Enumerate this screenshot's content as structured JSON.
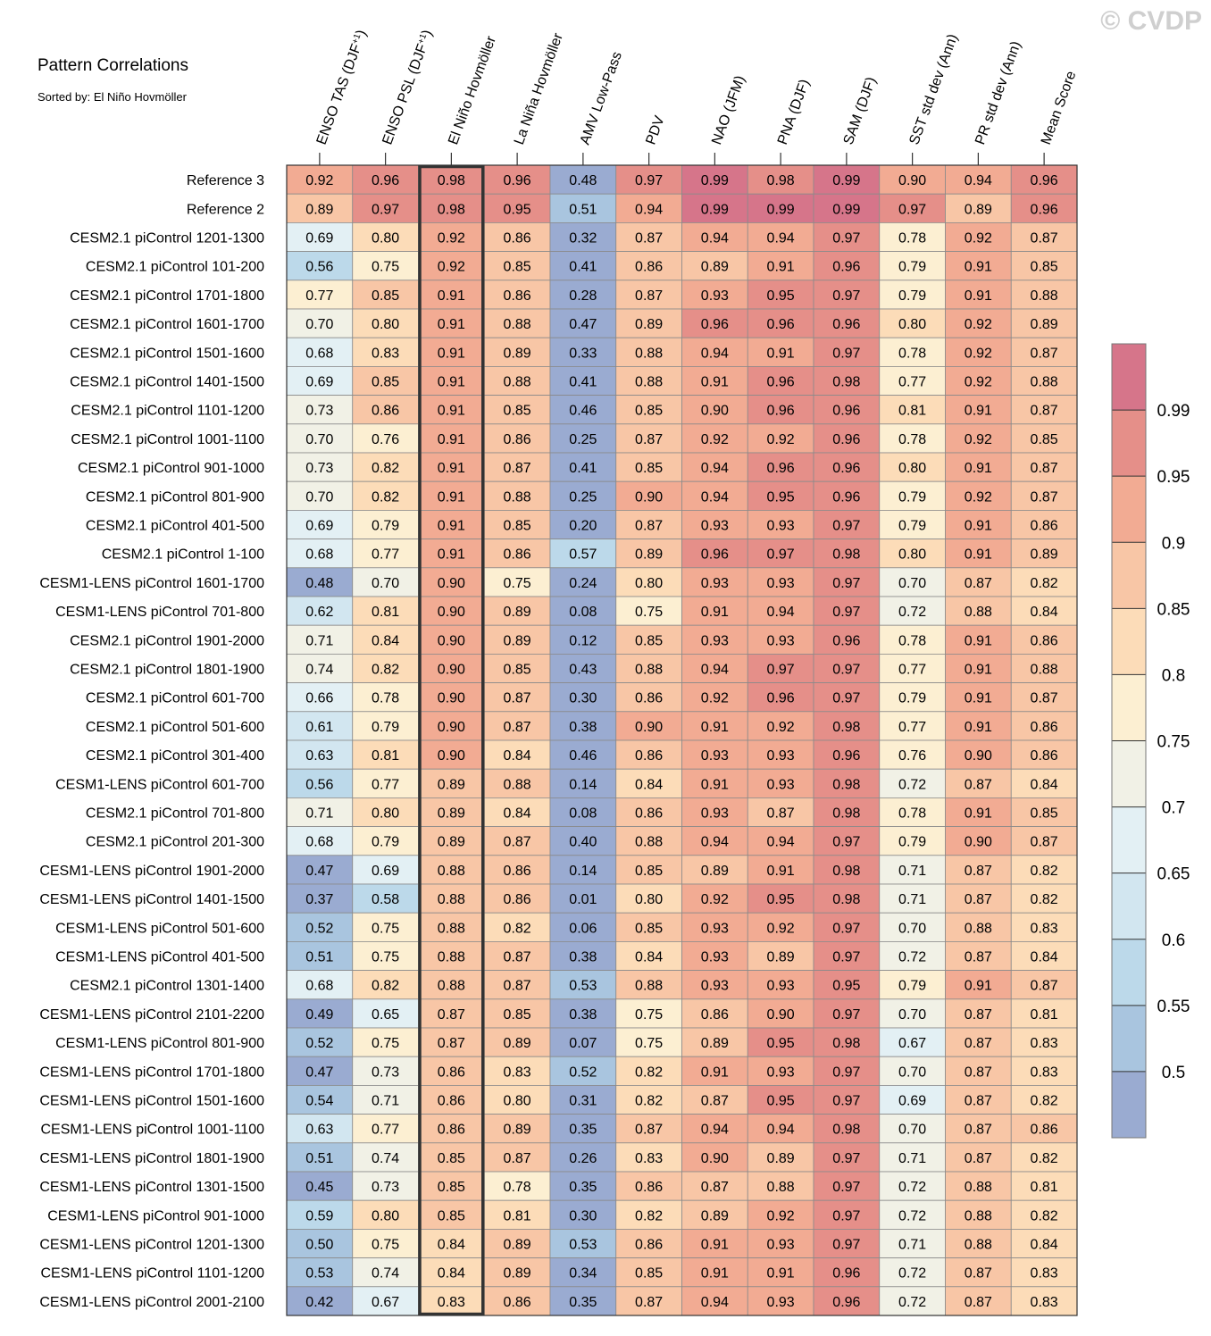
{
  "watermark": "© CVDP",
  "chart_data": {
    "type": "heatmap",
    "title": "Pattern Correlations",
    "subtitle": "Sorted by: El Niño Hovmöller",
    "highlighted_column": "El Niño Hovmöller",
    "columns": [
      {
        "label": "ENSO TAS (DJF",
        "sup": "+1",
        "suffix": ")"
      },
      {
        "label": "ENSO PSL (DJF",
        "sup": "+1",
        "suffix": ")"
      },
      {
        "label": "El Niño Hovmöller"
      },
      {
        "label": "La Niña Hovmöller"
      },
      {
        "label": "AMV Low-Pass"
      },
      {
        "label": "PDV"
      },
      {
        "label": "NAO (JFM)"
      },
      {
        "label": "PNA (DJF)"
      },
      {
        "label": "SAM (DJF)"
      },
      {
        "label": "SST std dev (Ann)"
      },
      {
        "label": "PR std dev (Ann)"
      },
      {
        "label": "Mean Score"
      }
    ],
    "rows": [
      {
        "label": "Reference 3",
        "values": [
          "0.92",
          "0.96",
          "0.98",
          "0.96",
          "0.48",
          "0.97",
          "0.99",
          "0.98",
          "0.99",
          "0.90",
          "0.94",
          "0.96"
        ]
      },
      {
        "label": "Reference 2",
        "values": [
          "0.89",
          "0.97",
          "0.98",
          "0.95",
          "0.51",
          "0.94",
          "0.99",
          "0.99",
          "0.99",
          "0.97",
          "0.89",
          "0.96"
        ]
      },
      {
        "label": "CESM2.1 piControl 1201-1300",
        "values": [
          "0.69",
          "0.80",
          "0.92",
          "0.86",
          "0.32",
          "0.87",
          "0.94",
          "0.94",
          "0.97",
          "0.78",
          "0.92",
          "0.87"
        ]
      },
      {
        "label": "CESM2.1 piControl 101-200",
        "values": [
          "0.56",
          "0.75",
          "0.92",
          "0.85",
          "0.41",
          "0.86",
          "0.89",
          "0.91",
          "0.96",
          "0.79",
          "0.91",
          "0.85"
        ]
      },
      {
        "label": "CESM2.1 piControl 1701-1800",
        "values": [
          "0.77",
          "0.85",
          "0.91",
          "0.86",
          "0.28",
          "0.87",
          "0.93",
          "0.95",
          "0.97",
          "0.79",
          "0.91",
          "0.88"
        ]
      },
      {
        "label": "CESM2.1 piControl 1601-1700",
        "values": [
          "0.70",
          "0.80",
          "0.91",
          "0.88",
          "0.47",
          "0.89",
          "0.96",
          "0.96",
          "0.96",
          "0.80",
          "0.92",
          "0.89"
        ]
      },
      {
        "label": "CESM2.1 piControl 1501-1600",
        "values": [
          "0.68",
          "0.83",
          "0.91",
          "0.89",
          "0.33",
          "0.88",
          "0.94",
          "0.91",
          "0.97",
          "0.78",
          "0.92",
          "0.87"
        ]
      },
      {
        "label": "CESM2.1 piControl 1401-1500",
        "values": [
          "0.69",
          "0.85",
          "0.91",
          "0.88",
          "0.41",
          "0.88",
          "0.91",
          "0.96",
          "0.98",
          "0.77",
          "0.92",
          "0.88"
        ]
      },
      {
        "label": "CESM2.1 piControl 1101-1200",
        "values": [
          "0.73",
          "0.86",
          "0.91",
          "0.85",
          "0.46",
          "0.85",
          "0.90",
          "0.96",
          "0.96",
          "0.81",
          "0.91",
          "0.87"
        ]
      },
      {
        "label": "CESM2.1 piControl 1001-1100",
        "values": [
          "0.70",
          "0.76",
          "0.91",
          "0.86",
          "0.25",
          "0.87",
          "0.92",
          "0.92",
          "0.96",
          "0.78",
          "0.92",
          "0.85"
        ]
      },
      {
        "label": "CESM2.1 piControl 901-1000",
        "values": [
          "0.73",
          "0.82",
          "0.91",
          "0.87",
          "0.41",
          "0.85",
          "0.94",
          "0.96",
          "0.96",
          "0.80",
          "0.91",
          "0.87"
        ]
      },
      {
        "label": "CESM2.1 piControl 801-900",
        "values": [
          "0.70",
          "0.82",
          "0.91",
          "0.88",
          "0.25",
          "0.90",
          "0.94",
          "0.95",
          "0.96",
          "0.79",
          "0.92",
          "0.87"
        ]
      },
      {
        "label": "CESM2.1 piControl 401-500",
        "values": [
          "0.69",
          "0.79",
          "0.91",
          "0.85",
          "0.20",
          "0.87",
          "0.93",
          "0.93",
          "0.97",
          "0.79",
          "0.91",
          "0.86"
        ]
      },
      {
        "label": "CESM2.1 piControl 1-100",
        "values": [
          "0.68",
          "0.77",
          "0.91",
          "0.86",
          "0.57",
          "0.89",
          "0.96",
          "0.97",
          "0.98",
          "0.80",
          "0.91",
          "0.89"
        ]
      },
      {
        "label": "CESM1-LENS piControl 1601-1700",
        "values": [
          "0.48",
          "0.70",
          "0.90",
          "0.75",
          "0.24",
          "0.80",
          "0.93",
          "0.93",
          "0.97",
          "0.70",
          "0.87",
          "0.82"
        ]
      },
      {
        "label": "CESM1-LENS piControl 701-800",
        "values": [
          "0.62",
          "0.81",
          "0.90",
          "0.89",
          "0.08",
          "0.75",
          "0.91",
          "0.94",
          "0.97",
          "0.72",
          "0.88",
          "0.84"
        ]
      },
      {
        "label": "CESM2.1 piControl 1901-2000",
        "values": [
          "0.71",
          "0.84",
          "0.90",
          "0.89",
          "0.12",
          "0.85",
          "0.93",
          "0.93",
          "0.96",
          "0.78",
          "0.91",
          "0.86"
        ]
      },
      {
        "label": "CESM2.1 piControl 1801-1900",
        "values": [
          "0.74",
          "0.82",
          "0.90",
          "0.85",
          "0.43",
          "0.88",
          "0.94",
          "0.97",
          "0.97",
          "0.77",
          "0.91",
          "0.88"
        ]
      },
      {
        "label": "CESM2.1 piControl 601-700",
        "values": [
          "0.66",
          "0.78",
          "0.90",
          "0.87",
          "0.30",
          "0.86",
          "0.92",
          "0.96",
          "0.97",
          "0.79",
          "0.91",
          "0.87"
        ]
      },
      {
        "label": "CESM2.1 piControl 501-600",
        "values": [
          "0.61",
          "0.79",
          "0.90",
          "0.87",
          "0.38",
          "0.90",
          "0.91",
          "0.92",
          "0.98",
          "0.77",
          "0.91",
          "0.86"
        ]
      },
      {
        "label": "CESM2.1 piControl 301-400",
        "values": [
          "0.63",
          "0.81",
          "0.90",
          "0.84",
          "0.46",
          "0.86",
          "0.93",
          "0.93",
          "0.96",
          "0.76",
          "0.90",
          "0.86"
        ]
      },
      {
        "label": "CESM1-LENS piControl 601-700",
        "values": [
          "0.56",
          "0.77",
          "0.89",
          "0.88",
          "0.14",
          "0.84",
          "0.91",
          "0.93",
          "0.98",
          "0.72",
          "0.87",
          "0.84"
        ]
      },
      {
        "label": "CESM2.1 piControl 701-800",
        "values": [
          "0.71",
          "0.80",
          "0.89",
          "0.84",
          "0.08",
          "0.86",
          "0.93",
          "0.87",
          "0.98",
          "0.78",
          "0.91",
          "0.85"
        ]
      },
      {
        "label": "CESM2.1 piControl 201-300",
        "values": [
          "0.68",
          "0.79",
          "0.89",
          "0.87",
          "0.40",
          "0.88",
          "0.94",
          "0.94",
          "0.97",
          "0.79",
          "0.90",
          "0.87"
        ]
      },
      {
        "label": "CESM1-LENS piControl 1901-2000",
        "values": [
          "0.47",
          "0.69",
          "0.88",
          "0.86",
          "0.14",
          "0.85",
          "0.89",
          "0.91",
          "0.98",
          "0.71",
          "0.87",
          "0.82"
        ]
      },
      {
        "label": "CESM1-LENS piControl 1401-1500",
        "values": [
          "0.37",
          "0.58",
          "0.88",
          "0.86",
          "0.01",
          "0.80",
          "0.92",
          "0.95",
          "0.98",
          "0.71",
          "0.87",
          "0.82"
        ]
      },
      {
        "label": "CESM1-LENS piControl 501-600",
        "values": [
          "0.52",
          "0.75",
          "0.88",
          "0.82",
          "0.06",
          "0.85",
          "0.93",
          "0.92",
          "0.97",
          "0.70",
          "0.88",
          "0.83"
        ]
      },
      {
        "label": "CESM1-LENS piControl 401-500",
        "values": [
          "0.51",
          "0.75",
          "0.88",
          "0.87",
          "0.38",
          "0.84",
          "0.93",
          "0.89",
          "0.97",
          "0.72",
          "0.87",
          "0.84"
        ]
      },
      {
        "label": "CESM2.1 piControl 1301-1400",
        "values": [
          "0.68",
          "0.82",
          "0.88",
          "0.87",
          "0.53",
          "0.88",
          "0.93",
          "0.93",
          "0.95",
          "0.79",
          "0.91",
          "0.87"
        ]
      },
      {
        "label": "CESM1-LENS piControl 2101-2200",
        "values": [
          "0.49",
          "0.65",
          "0.87",
          "0.85",
          "0.38",
          "0.75",
          "0.86",
          "0.90",
          "0.97",
          "0.70",
          "0.87",
          "0.81"
        ]
      },
      {
        "label": "CESM1-LENS piControl 801-900",
        "values": [
          "0.52",
          "0.75",
          "0.87",
          "0.89",
          "0.07",
          "0.75",
          "0.89",
          "0.95",
          "0.98",
          "0.67",
          "0.87",
          "0.83"
        ]
      },
      {
        "label": "CESM1-LENS piControl 1701-1800",
        "values": [
          "0.47",
          "0.73",
          "0.86",
          "0.83",
          "0.52",
          "0.82",
          "0.91",
          "0.93",
          "0.97",
          "0.70",
          "0.87",
          "0.83"
        ]
      },
      {
        "label": "CESM1-LENS piControl 1501-1600",
        "values": [
          "0.54",
          "0.71",
          "0.86",
          "0.80",
          "0.31",
          "0.82",
          "0.87",
          "0.95",
          "0.97",
          "0.69",
          "0.87",
          "0.82"
        ]
      },
      {
        "label": "CESM1-LENS piControl 1001-1100",
        "values": [
          "0.63",
          "0.77",
          "0.86",
          "0.89",
          "0.35",
          "0.87",
          "0.94",
          "0.94",
          "0.98",
          "0.70",
          "0.87",
          "0.86"
        ]
      },
      {
        "label": "CESM1-LENS piControl 1801-1900",
        "values": [
          "0.51",
          "0.74",
          "0.85",
          "0.87",
          "0.26",
          "0.83",
          "0.90",
          "0.89",
          "0.97",
          "0.71",
          "0.87",
          "0.82"
        ]
      },
      {
        "label": "CESM1-LENS piControl 1301-1500",
        "values": [
          "0.45",
          "0.73",
          "0.85",
          "0.78",
          "0.35",
          "0.86",
          "0.87",
          "0.88",
          "0.97",
          "0.72",
          "0.88",
          "0.81"
        ]
      },
      {
        "label": "CESM1-LENS piControl 901-1000",
        "values": [
          "0.59",
          "0.80",
          "0.85",
          "0.81",
          "0.30",
          "0.82",
          "0.89",
          "0.92",
          "0.97",
          "0.72",
          "0.88",
          "0.82"
        ]
      },
      {
        "label": "CESM1-LENS piControl 1201-1300",
        "values": [
          "0.50",
          "0.75",
          "0.84",
          "0.89",
          "0.53",
          "0.86",
          "0.91",
          "0.93",
          "0.97",
          "0.71",
          "0.88",
          "0.84"
        ]
      },
      {
        "label": "CESM1-LENS piControl 1101-1200",
        "values": [
          "0.53",
          "0.74",
          "0.84",
          "0.89",
          "0.34",
          "0.85",
          "0.91",
          "0.91",
          "0.96",
          "0.72",
          "0.87",
          "0.83"
        ]
      },
      {
        "label": "CESM1-LENS piControl 2001-2100",
        "values": [
          "0.42",
          "0.67",
          "0.83",
          "0.86",
          "0.35",
          "0.87",
          "0.94",
          "0.93",
          "0.96",
          "0.72",
          "0.87",
          "0.83"
        ]
      }
    ],
    "colorbar": {
      "boundaries": [
        0.5,
        0.55,
        0.6,
        0.65,
        0.7,
        0.75,
        0.8,
        0.85,
        0.9,
        0.95,
        0.99
      ],
      "tick_labels": [
        "0.5",
        "0.55",
        "0.6",
        "0.65",
        "0.7",
        "0.75",
        "0.8",
        "0.85",
        "0.9",
        "0.95",
        "0.99"
      ],
      "colors": [
        "#9aabd1",
        "#a9c5df",
        "#bcd9ea",
        "#d2e6f0",
        "#e3f0f4",
        "#f1f1e6",
        "#fcefd2",
        "#fcdcb8",
        "#f8c6a6",
        "#f2ab93",
        "#e58f89",
        "#d6758a"
      ]
    }
  }
}
